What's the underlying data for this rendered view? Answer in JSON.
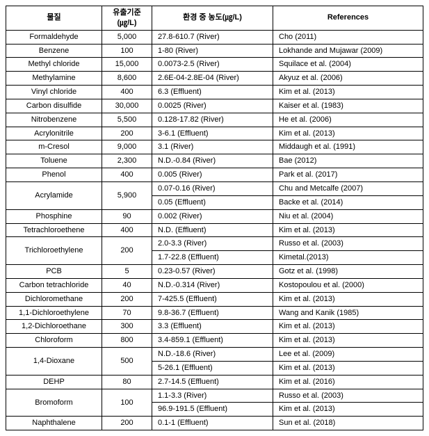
{
  "headers": {
    "substance": "물질",
    "standard_line1": "유출기준",
    "standard_line2": "(㎍/L)",
    "concentration": "환경 중 농도(㎍/L)",
    "references": "References"
  },
  "rows": [
    {
      "substance": "Formaldehyde",
      "standard": "5,000",
      "concentrations": [
        "27.8-610.7 (River)"
      ],
      "references": [
        "Cho (2011)"
      ]
    },
    {
      "substance": "Benzene",
      "standard": "100",
      "concentrations": [
        "1-80 (River)"
      ],
      "references": [
        "Lokhande and Mujawar (2009)"
      ]
    },
    {
      "substance": "Methyl chloride",
      "standard": "15,000",
      "concentrations": [
        "0.0073-2.5 (River)"
      ],
      "references": [
        "Squilace et al. (2004)"
      ]
    },
    {
      "substance": "Methylamine",
      "standard": "8,600",
      "concentrations": [
        "2.6E-04-2.8E-04 (River)"
      ],
      "references": [
        "Akyuz et al. (2006)"
      ]
    },
    {
      "substance": "Vinyl chloride",
      "standard": "400",
      "concentrations": [
        "6.3 (Effluent)"
      ],
      "references": [
        "Kim et al. (2013)"
      ]
    },
    {
      "substance": "Carbon disulfide",
      "standard": "30,000",
      "concentrations": [
        "0.0025 (River)"
      ],
      "references": [
        "Kaiser et al. (1983)"
      ]
    },
    {
      "substance": "Nitrobenzene",
      "standard": "5,500",
      "concentrations": [
        "0.128-17.82 (River)"
      ],
      "references": [
        "He et al. (2006)"
      ]
    },
    {
      "substance": "Acrylonitrile",
      "standard": "200",
      "concentrations": [
        "3-6.1 (Effluent)"
      ],
      "references": [
        "Kim et al. (2013)"
      ]
    },
    {
      "substance": "m-Cresol",
      "standard": "9,000",
      "concentrations": [
        "3.1 (River)"
      ],
      "references": [
        "Middaugh et al. (1991)"
      ]
    },
    {
      "substance": "Toluene",
      "standard": "2,300",
      "concentrations": [
        "N.D.-0.84 (River)"
      ],
      "references": [
        "Bae (2012)"
      ]
    },
    {
      "substance": "Phenol",
      "standard": "400",
      "concentrations": [
        "0.005 (River)"
      ],
      "references": [
        "Park et al. (2017)"
      ]
    },
    {
      "substance": "Acrylamide",
      "standard": "5,900",
      "concentrations": [
        "0.07-0.16 (River)",
        "0.05 (Effluent)"
      ],
      "references": [
        "Chu and Metcalfe (2007)",
        "Backe et al. (2014)"
      ]
    },
    {
      "substance": "Phosphine",
      "standard": "90",
      "concentrations": [
        "0.002 (River)"
      ],
      "references": [
        "Niu et al. (2004)"
      ]
    },
    {
      "substance": "Tetrachloroethene",
      "standard": "400",
      "concentrations": [
        "N.D. (Effluent)"
      ],
      "references": [
        "Kim et al. (2013)"
      ]
    },
    {
      "substance": "Trichloroethylene",
      "standard": "200",
      "concentrations": [
        "2.0-3.3 (River)",
        "1.7-22.8 (Effluent)"
      ],
      "references": [
        "Russo et al. (2003)",
        "Kimetal.(2013)"
      ]
    },
    {
      "substance": "PCB",
      "standard": "5",
      "concentrations": [
        "0.23-0.57 (River)"
      ],
      "references": [
        "Gotz et al. (1998)"
      ]
    },
    {
      "substance": "Carbon tetrachloride",
      "standard": "40",
      "concentrations": [
        "N.D.-0.314 (River)"
      ],
      "references": [
        "Kostopoulou et al. (2000)"
      ]
    },
    {
      "substance": "Dichloromethane",
      "standard": "200",
      "concentrations": [
        "7-425.5 (Effluent)"
      ],
      "references": [
        "Kim et al. (2013)"
      ]
    },
    {
      "substance": "1,1-Dichloroethylene",
      "standard": "70",
      "concentrations": [
        "9.8-36.7 (Effluent)"
      ],
      "references": [
        "Wang and Kanik (1985)"
      ]
    },
    {
      "substance": "1,2-Dichloroethane",
      "standard": "300",
      "concentrations": [
        "3.3 (Effluent)"
      ],
      "references": [
        "Kim et al. (2013)"
      ]
    },
    {
      "substance": "Chloroform",
      "standard": "800",
      "concentrations": [
        "3.4-859.1 (Effluent)"
      ],
      "references": [
        "Kim et al. (2013)"
      ]
    },
    {
      "substance": "1,4-Dioxane",
      "standard": "500",
      "concentrations": [
        "N.D.-18.6 (River)",
        "5-26.1 (Effluent)"
      ],
      "references": [
        "Lee et al. (2009)",
        "Kim et al. (2013)"
      ]
    },
    {
      "substance": "DEHP",
      "standard": "80",
      "concentrations": [
        "2.7-14.5 (Effluent)"
      ],
      "references": [
        "Kim et al. (2016)"
      ]
    },
    {
      "substance": "Bromoform",
      "standard": "100",
      "concentrations": [
        "1.1-3.3 (River)",
        "96.9-191.5 (Effluent)"
      ],
      "references": [
        "Russo et al. (2003)",
        "Kim et al. (2013)"
      ]
    },
    {
      "substance": "Naphthalene",
      "standard": "200",
      "concentrations": [
        "0.1-1 (Effluent)"
      ],
      "references": [
        "Sun et al. (2018)"
      ]
    }
  ]
}
